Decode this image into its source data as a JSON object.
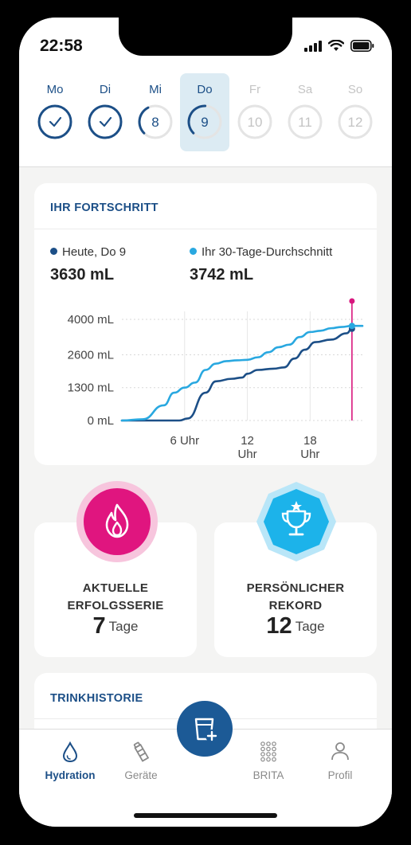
{
  "status": {
    "time": "22:58"
  },
  "week": [
    {
      "name": "Mo",
      "state": "done",
      "num": ""
    },
    {
      "name": "Di",
      "state": "done",
      "num": ""
    },
    {
      "name": "Mi",
      "state": "partial",
      "num": "8"
    },
    {
      "name": "Do",
      "state": "active",
      "num": "9"
    },
    {
      "name": "Fr",
      "state": "future",
      "num": "10"
    },
    {
      "name": "Sa",
      "state": "future",
      "num": "11"
    },
    {
      "name": "So",
      "state": "future",
      "num": "12"
    }
  ],
  "progress": {
    "title": "IHR FORTSCHRITT",
    "today_label": "Heute, Do 9",
    "today_value": "3630 mL",
    "avg_label": "Ihr 30-Tage-Durchschnitt",
    "avg_value": "3742 mL"
  },
  "chart_data": {
    "type": "line",
    "yticks": [
      "4000 mL",
      "2600 mL",
      "1300 mL",
      "0 mL"
    ],
    "ytick_values": [
      4000,
      2600,
      1300,
      0
    ],
    "xticks": [
      {
        "value": 6,
        "label": [
          "6 Uhr"
        ]
      },
      {
        "value": 12,
        "label": [
          "12",
          "Uhr"
        ]
      },
      {
        "value": 18,
        "label": [
          "18",
          "Uhr"
        ]
      }
    ],
    "xlim": [
      0,
      23
    ],
    "ylim": [
      0,
      4000
    ],
    "colors": {
      "today": "#1c4f87",
      "average": "#29a8e0",
      "now_marker": "#d8177e"
    },
    "series": [
      {
        "key": "today",
        "x": [
          0,
          5.5,
          6.3,
          8,
          9,
          10.5,
          11.5,
          12,
          13,
          14.5,
          15.5,
          16.5,
          17.5,
          18.5,
          20,
          21.5,
          22
        ],
        "y": [
          0,
          0,
          80,
          1100,
          1550,
          1650,
          1700,
          1850,
          2000,
          2050,
          2100,
          2450,
          2800,
          3100,
          3200,
          3450,
          3630
        ]
      },
      {
        "key": "average",
        "x": [
          0,
          2,
          4,
          5,
          6,
          7,
          8,
          9,
          10,
          11,
          12,
          13,
          14,
          15,
          16,
          17,
          18,
          19,
          20,
          21,
          22,
          23
        ],
        "y": [
          0,
          50,
          600,
          1100,
          1300,
          1500,
          2000,
          2250,
          2350,
          2380,
          2400,
          2500,
          2700,
          2900,
          3000,
          3300,
          3500,
          3550,
          3650,
          3700,
          3742,
          3742
        ]
      }
    ]
  },
  "streak": {
    "title_line1": "AKTUELLE",
    "title_line2": "ERFOLGSSERIE",
    "value": "7",
    "unit": "Tage",
    "color": "#e0157f"
  },
  "record": {
    "title_line1": "PERSÖNLICHER",
    "title_line2": "REKORD",
    "value": "12",
    "unit": "Tage",
    "color": "#1cb3ea"
  },
  "history": {
    "title": "TRINKHISTORIE"
  },
  "tabs": [
    {
      "label": "Hydration",
      "icon": "water-drop-icon",
      "active": true
    },
    {
      "label": "Geräte",
      "icon": "bottle-icon",
      "active": false
    },
    {
      "label": "BRITA",
      "icon": "grid-dots-icon",
      "active": false
    },
    {
      "label": "Profil",
      "icon": "person-icon",
      "active": false
    }
  ]
}
